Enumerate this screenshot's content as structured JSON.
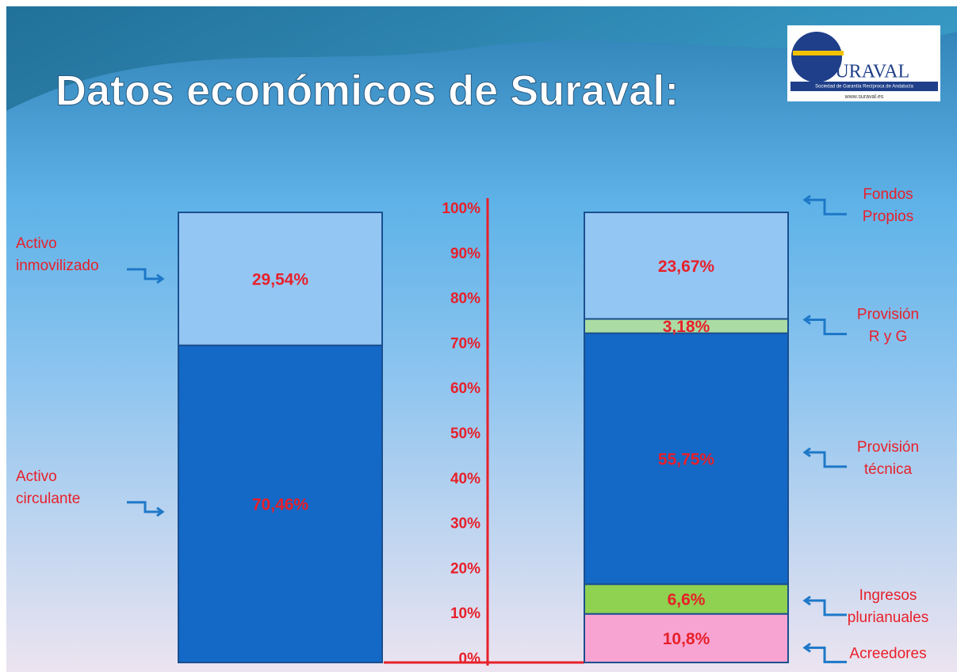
{
  "header": {
    "title": "Datos económicos de Suraval:",
    "logo": "SURAVAL",
    "logo_subtitle": "Sociedad de Garantía Recíproca de Andalucía",
    "logo_url": "www.suraval.es"
  },
  "chart_data": {
    "type": "stacked-bar",
    "ylim": [
      0,
      100
    ],
    "yticks": [
      {
        "value": 0,
        "label": "0%"
      },
      {
        "value": 10,
        "label": "10%"
      },
      {
        "value": 20,
        "label": "20%"
      },
      {
        "value": 30,
        "label": "30%"
      },
      {
        "value": 40,
        "label": "40%"
      },
      {
        "value": 50,
        "label": "50%"
      },
      {
        "value": 60,
        "label": "60%"
      },
      {
        "value": 70,
        "label": "70%"
      },
      {
        "value": 80,
        "label": "80%"
      },
      {
        "value": 90,
        "label": "90%"
      },
      {
        "value": 100,
        "label": "100%"
      }
    ],
    "stacks": [
      {
        "segments": [
          {
            "name": [
              "Activo",
              "circulante"
            ],
            "value": 70.46,
            "value_label": "70,46%",
            "color": "#1468c6"
          },
          {
            "name": [
              "Activo",
              "inmovilizado"
            ],
            "value": 29.54,
            "value_label": "29,54%",
            "color": "#94c6f4"
          }
        ]
      },
      {
        "segments": [
          {
            "name": [
              "Acreedores"
            ],
            "value": 10.8,
            "value_label": "10,8%",
            "color": "#f7a4d2"
          },
          {
            "name": [
              "Ingresos",
              "plurianuales"
            ],
            "value": 6.6,
            "value_label": "6,6%",
            "color": "#8fd150"
          },
          {
            "name": [
              "Provisión",
              "técnica"
            ],
            "value": 55.75,
            "value_label": "55,75%",
            "color": "#1468c6"
          },
          {
            "name": [
              "Provisión",
              "R y G"
            ],
            "value": 3.18,
            "value_label": "3,18%",
            "color": "#abdca3"
          },
          {
            "name": [
              "Fondos",
              "Propios"
            ],
            "value": 23.67,
            "value_label": "23,67%",
            "color": "#94c6f4"
          }
        ]
      }
    ]
  }
}
